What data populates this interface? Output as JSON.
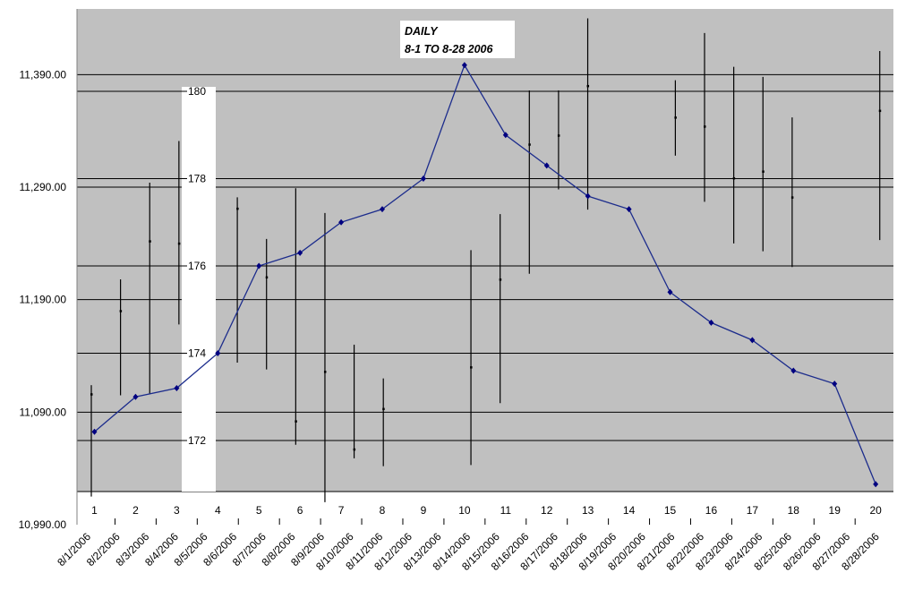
{
  "chart_data": {
    "type": "line",
    "title_lines": [
      "DAILY",
      "8-1 TO 8-28 2006"
    ],
    "colors": {
      "plot_bg": "#c0c0c0",
      "line": "#1c2c8c",
      "marker": "#000080",
      "bars": "#000000",
      "grid": "#000000",
      "band": "#ffffff"
    },
    "left_axis": {
      "ticks": [
        "10,990.00",
        "11,090.00",
        "11,190.00",
        "11,290.00",
        "11,390.00"
      ],
      "tick_values": [
        10990,
        11090,
        11190,
        11290,
        11390
      ],
      "range": [
        10990,
        11430
      ]
    },
    "right_axis": {
      "ticks": [
        "172",
        "174",
        "176",
        "178",
        "180"
      ],
      "tick_values": [
        172,
        174,
        176,
        178,
        180
      ],
      "range": [
        170.8,
        182.2
      ]
    },
    "index_labels": [
      "1",
      "2",
      "3",
      "4",
      "5",
      "6",
      "7",
      "8",
      "9",
      "10",
      "11",
      "12",
      "13",
      "14",
      "15",
      "16",
      "17",
      "18",
      "19",
      "20"
    ],
    "x_dates": [
      "8/1/2006",
      "8/2/2006",
      "8/3/2006",
      "8/4/2006",
      "8/5/2006",
      "8/6/2006",
      "8/7/2006",
      "8/8/2006",
      "8/9/2006",
      "8/10/2006",
      "8/11/2006",
      "8/12/2006",
      "8/13/2006",
      "8/14/2006",
      "8/15/2006",
      "8/16/2006",
      "8/17/2006",
      "8/18/2006",
      "8/19/2006",
      "8/20/2006",
      "8/21/2006",
      "8/22/2006",
      "8/23/2006",
      "8/24/2006",
      "8/25/2006",
      "8/26/2006",
      "8/27/2006",
      "8/28/2006"
    ],
    "series": [
      {
        "values": [
          172.2,
          173.0,
          173.2,
          174.0,
          176.0,
          176.3,
          177.0,
          177.3,
          178.0,
          180.6,
          179.0,
          178.3,
          177.6,
          177.3,
          175.4,
          174.7,
          174.3,
          173.6,
          173.3,
          171.0
        ]
      }
    ],
    "hl_bars": [
      {
        "date": "8/1/2006",
        "high": 11114,
        "low": 11015,
        "close": 11106
      },
      {
        "date": "8/2/2006",
        "high": 11208,
        "low": 11105,
        "close": 11180
      },
      {
        "date": "8/3/2006",
        "high": 11294,
        "low": 11106,
        "close": 11242
      },
      {
        "date": "8/4/2006",
        "high": 11331,
        "low": 11168,
        "close": 11240
      },
      {
        "date": "8/6/2006",
        "high": 11281,
        "low": 11134,
        "close": 11271
      },
      {
        "date": "8/7/2006",
        "high": 11244,
        "low": 11128,
        "close": 11210
      },
      {
        "date": "8/8/2006",
        "high": 11289,
        "low": 11061,
        "close": 11082
      },
      {
        "date": "8/9/2006",
        "high": 11267,
        "low": 11010,
        "close": 11126
      },
      {
        "date": "8/10/2006",
        "high": 11150,
        "low": 11049,
        "close": 11057
      },
      {
        "date": "8/11/2006",
        "high": 11120,
        "low": 11042,
        "close": 11093
      },
      {
        "date": "8/14/2006",
        "high": 11234,
        "low": 11043,
        "close": 11130
      },
      {
        "date": "8/15/2006",
        "high": 11266,
        "low": 11098,
        "close": 11208
      },
      {
        "date": "8/16/2006",
        "high": 11376,
        "low": 11213,
        "close": 11328
      },
      {
        "date": "8/17/2006",
        "high": 11376,
        "low": 11288,
        "close": 11336
      },
      {
        "date": "8/18/2006",
        "high": 11440,
        "low": 11270,
        "close": 11380
      },
      {
        "date": "8/21/2006",
        "high": 11385,
        "low": 11318,
        "close": 11352
      },
      {
        "date": "8/22/2006",
        "high": 11427,
        "low": 11277,
        "close": 11344
      },
      {
        "date": "8/23/2006",
        "high": 11397,
        "low": 11240,
        "close": 11298
      },
      {
        "date": "8/24/2006",
        "high": 11388,
        "low": 11233,
        "close": 11304
      },
      {
        "date": "8/25/2006",
        "high": 11352,
        "low": 11219,
        "close": 11281
      },
      {
        "date": "8/28/2006",
        "high": 11411,
        "low": 11243,
        "close": 11358
      }
    ]
  }
}
